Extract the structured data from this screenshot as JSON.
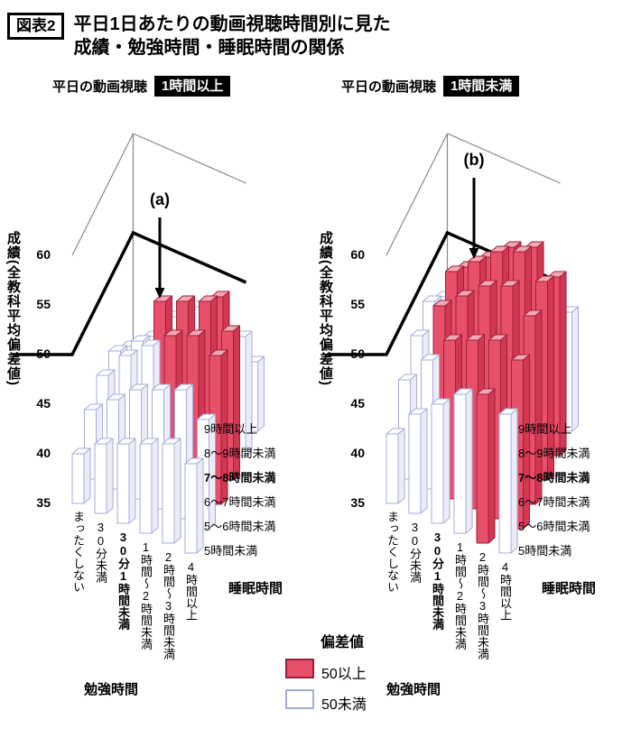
{
  "header": {
    "tag": "図表2",
    "title_line1": "平日1日あたりの動画視聴時間別に見た",
    "title_line2": "成績・勉強時間・睡眠時間の関係"
  },
  "legend": {
    "title": "偏差値",
    "items": [
      {
        "label": "50以上",
        "key": "red"
      },
      {
        "label": "50未満",
        "key": "white"
      }
    ]
  },
  "colors": {
    "bar_red_front": "#e8506a",
    "bar_red_top": "#f4a7b4",
    "bar_red_side": "#d23753",
    "bar_red_stroke": "#9c1f37",
    "bar_white_front": "#ffffff",
    "bar_white_top": "#ffffff",
    "bar_white_side": "#ececf9",
    "bar_white_stroke": "#a6abd8",
    "badge_bg": "#000000",
    "badge_text": "#ffffff",
    "frame": "#888888",
    "grid50": "#000000"
  },
  "chart_data": [
    {
      "type": "3d-bar",
      "title": "平日の動画視聴 1時間以上",
      "subtitle": "平日の動画視聴",
      "badge": "1時間以上",
      "annotation": "(a)",
      "annotation_target": {
        "study_index": 2,
        "sleep_index": 3
      },
      "threshold": 50,
      "value_axis": {
        "label": "成績(全教科平均偏差値)",
        "ticks": [
          60,
          55,
          50,
          45,
          40,
          35
        ],
        "bold_tick": 50,
        "range": [
          35,
          60
        ]
      },
      "x_axis": {
        "title": "勉強時間",
        "categories": [
          "まったくしない",
          "30分未満",
          "30分1時間未満",
          "1時間〜2時間未満",
          "2時間〜3時間未満",
          "4時間以上"
        ],
        "bold_category": "30分1時間未満"
      },
      "depth_axis": {
        "title": "睡眠時間",
        "categories": [
          "5時間未満",
          "5〜6時間未満",
          "6〜7時間未満",
          "7〜8時間未満",
          "8〜9時間未満",
          "9時間以上"
        ],
        "bold_category": "7〜8時間未満"
      },
      "values": [
        [
          40,
          42,
          43,
          43,
          41,
          38
        ],
        [
          42,
          44,
          46,
          45,
          43,
          40
        ],
        [
          43,
          46,
          48,
          50,
          46,
          41
        ],
        [
          44,
          47,
          50,
          51,
          48,
          42
        ],
        [
          45,
          48,
          51,
          52,
          50,
          43
        ],
        [
          44,
          46,
          50,
          50,
          47,
          42
        ]
      ]
    },
    {
      "type": "3d-bar",
      "title": "平日の動画視聴 1時間未満",
      "subtitle": "平日の動画視聴",
      "badge": "1時間未満",
      "annotation": "(b)",
      "annotation_target": {
        "study_index": 2,
        "sleep_index": 3
      },
      "threshold": 50,
      "value_axis": {
        "label": "成績(全教科平均偏差値)",
        "ticks": [
          60,
          55,
          50,
          45,
          40,
          35
        ],
        "bold_tick": 50,
        "range": [
          35,
          60
        ]
      },
      "x_axis": {
        "title": "勉強時間",
        "categories": [
          "まったくしない",
          "30分未満",
          "30分1時間未満",
          "1時間〜2時間未満",
          "2時間〜3時間未満",
          "4時間以上"
        ],
        "bold_category": "30分1時間未満"
      },
      "depth_axis": {
        "title": "睡眠時間",
        "categories": [
          "5時間未満",
          "5〜6時間未満",
          "6〜7時間未満",
          "7〜8時間未満",
          "8〜9時間未満",
          "9時間以上"
        ],
        "bold_category": "7〜8時間未満"
      },
      "values": [
        [
          42,
          45,
          47,
          48,
          46,
          41
        ],
        [
          45,
          48,
          51,
          52,
          50,
          44
        ],
        [
          47,
          51,
          53,
          54,
          52,
          46
        ],
        [
          49,
          52,
          55,
          56,
          54,
          48
        ],
        [
          50,
          53,
          56,
          57,
          55,
          49
        ],
        [
          49,
          52,
          54,
          55,
          53,
          47
        ]
      ]
    }
  ]
}
